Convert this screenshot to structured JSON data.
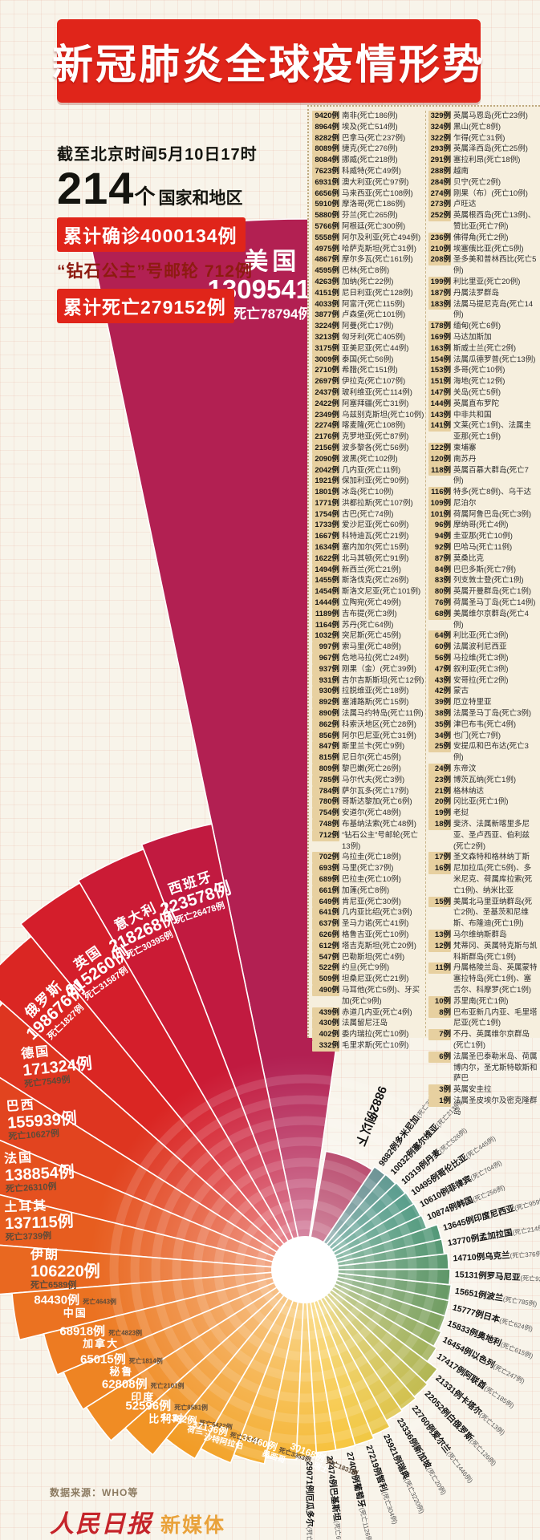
{
  "header": {
    "title": "新冠肺炎全球疫情形势",
    "asof": "截至北京时间5月10日17时",
    "countries_count": "214",
    "countries_unit": "个",
    "countries_suffix": "国家和地区",
    "confirmed_total": "累计确诊4000134例",
    "ship_line": "“钻石公主”号邮轮 712例",
    "deaths_total": "累计死亡279152例"
  },
  "footer": {
    "source": "数据来源：WHO等",
    "brand_main": "人民日报",
    "brand_sub": "新媒体"
  },
  "colors": {
    "banner_red": "#e0251a",
    "badge_tan": "#e7d0a0",
    "panel_cream": "#f6efde",
    "us_wedge": "#b22052"
  },
  "chart_data": {
    "type": "pie",
    "subtype": "rose-spiral",
    "unit": "例",
    "title": "新冠肺炎全球疫情形势",
    "threshold_label": "9882例以下",
    "series_format": [
      "name",
      "cases",
      "deaths"
    ],
    "series": [
      [
        "美国",
        1309541,
        78794
      ],
      [
        "西班牙",
        223578,
        26478
      ],
      [
        "意大利",
        218268,
        30395
      ],
      [
        "英国",
        215260,
        31587
      ],
      [
        "俄罗斯",
        198676,
        1827
      ],
      [
        "德国",
        171324,
        7549
      ],
      [
        "巴西",
        155939,
        10627
      ],
      [
        "法国",
        138854,
        26310
      ],
      [
        "土耳其",
        137115,
        3739
      ],
      [
        "伊朗",
        106220,
        6589
      ],
      [
        "中国",
        84430,
        4643
      ],
      [
        "加拿大",
        68918,
        4823
      ],
      [
        "秘鲁",
        65015,
        1814
      ],
      [
        "印度",
        62808,
        2101
      ],
      [
        "比利时",
        52596,
        8581
      ],
      [
        "荷兰",
        42382,
        5422
      ],
      [
        "沙特阿拉伯",
        37136,
        239
      ],
      [
        "墨西哥",
        33460,
        3353
      ],
      [
        "瑞士",
        30168,
        1831
      ],
      [
        "厄瓜多尔",
        29071,
        1717
      ],
      [
        "巴基斯坦",
        27474,
        618
      ],
      [
        "葡萄牙",
        27406,
        1126
      ],
      [
        "智利",
        27219,
        304
      ],
      [
        "瑞典",
        25921,
        3220
      ],
      [
        "新加坡",
        23336,
        20
      ],
      [
        "爱尔兰",
        22760,
        1446
      ],
      [
        "白俄罗斯",
        22052,
        126
      ],
      [
        "卡塔尔",
        21331,
        13
      ],
      [
        "阿联酋",
        17417,
        185
      ],
      [
        "以色列",
        16454,
        247
      ],
      [
        "奥地利",
        15833,
        615
      ],
      [
        "日本",
        15777,
        624
      ],
      [
        "波兰",
        15651,
        785
      ],
      [
        "罗马尼亚",
        15131,
        926
      ],
      [
        "乌克兰",
        14710,
        376
      ],
      [
        "孟加拉国",
        13770,
        214
      ],
      [
        "印度尼西亚",
        13645,
        959
      ],
      [
        "韩国",
        10874,
        256
      ],
      [
        "菲律宾",
        10610,
        704
      ],
      [
        "哥伦比亚",
        10495,
        445
      ],
      [
        "丹麦",
        10319,
        526
      ],
      [
        "塞尔维亚",
        10032,
        213
      ],
      [
        "多米尼加",
        9882,
        385
      ]
    ],
    "wedge_colors": [
      "#b22052",
      "#c11a40",
      "#cb1b35",
      "#d41e2b",
      "#da2623",
      "#de3520",
      "#e2441f",
      "#e5511f",
      "#e75d1f",
      "#e96820",
      "#eb7221",
      "#ed7b22",
      "#ee8423",
      "#f08c24",
      "#f19425",
      "#f29c26",
      "#f3a328",
      "#f4aa2a",
      "#f5b12c",
      "#f5b72e",
      "#f6bd30",
      "#f6c232",
      "#f0c334",
      "#e8c136",
      "#dcbe38",
      "#cdba3a",
      "#bcb43c",
      "#a8ad3e",
      "#93a540",
      "#7e9c42",
      "#6a9344",
      "#578b46",
      "#4a8648",
      "#40834c",
      "#398251",
      "#348256",
      "#30835c",
      "#2e8462",
      "#2d8568",
      "#2e856d",
      "#318472",
      "#398076",
      "#48787a"
    ],
    "threshold_wedge_color": "#a81f4a",
    "legend_position": "none",
    "grid": true
  },
  "country_list": {
    "column1": [
      [
        "9420例",
        "南非(死亡186例)"
      ],
      [
        "8964例",
        "埃及(死亡514例)"
      ],
      [
        "8282例",
        "巴拿马(死亡237例)"
      ],
      [
        "8089例",
        "捷克(死亡276例)"
      ],
      [
        "8084例",
        "挪威(死亡218例)"
      ],
      [
        "7623例",
        "科威特(死亡49例)"
      ],
      [
        "6931例",
        "澳大利亚(死亡97例)"
      ],
      [
        "6656例",
        "马来西亚(死亡108例)"
      ],
      [
        "5910例",
        "摩洛哥(死亡186例)"
      ],
      [
        "5880例",
        "芬兰(死亡265例)"
      ],
      [
        "5766例",
        "阿根廷(死亡300例)"
      ],
      [
        "5558例",
        "阿尔及利亚(死亡494例)"
      ],
      [
        "4975例",
        "哈萨克斯坦(死亡31例)"
      ],
      [
        "4867例",
        "摩尔多瓦(死亡161例)"
      ],
      [
        "4595例",
        "巴林(死亡8例)"
      ],
      [
        "4263例",
        "加纳(死亡22例)"
      ],
      [
        "4151例",
        "尼日利亚(死亡128例)"
      ],
      [
        "4033例",
        "阿富汗(死亡115例)"
      ],
      [
        "3877例",
        "卢森堡(死亡101例)"
      ],
      [
        "3224例",
        "阿曼(死亡17例)"
      ],
      [
        "3213例",
        "匈牙利(死亡405例)"
      ],
      [
        "3175例",
        "亚美尼亚(死亡44例)"
      ],
      [
        "3009例",
        "泰国(死亡56例)"
      ],
      [
        "2710例",
        "希腊(死亡151例)"
      ],
      [
        "2697例",
        "伊拉克(死亡107例)"
      ],
      [
        "2437例",
        "玻利维亚(死亡114例)"
      ],
      [
        "2422例",
        "阿塞拜疆(死亡31例)"
      ],
      [
        "2349例",
        "乌兹别克斯坦(死亡10例)"
      ],
      [
        "2274例",
        "喀麦隆(死亡108例)"
      ],
      [
        "2176例",
        "克罗地亚(死亡87例)"
      ],
      [
        "2156例",
        "波多黎各(死亡56例)"
      ],
      [
        "2090例",
        "波黑(死亡102例)"
      ],
      [
        "2042例",
        "几内亚(死亡11例)"
      ],
      [
        "1921例",
        "保加利亚(死亡90例)"
      ],
      [
        "1801例",
        "冰岛(死亡10例)"
      ],
      [
        "1771例",
        "洪都拉斯(死亡107例)"
      ],
      [
        "1754例",
        "古巴(死亡74例)"
      ],
      [
        "1733例",
        "爱沙尼亚(死亡60例)"
      ],
      [
        "1667例",
        "科特迪瓦(死亡21例)"
      ],
      [
        "1634例",
        "塞内加尔(死亡15例)"
      ],
      [
        "1622例",
        "北马其顿(死亡91例)"
      ],
      [
        "1494例",
        "新西兰(死亡21例)"
      ],
      [
        "1455例",
        "斯洛伐克(死亡26例)"
      ],
      [
        "1454例",
        "斯洛文尼亚(死亡101例)"
      ],
      [
        "1444例",
        "立陶宛(死亡49例)"
      ],
      [
        "1189例",
        "吉布提(死亡3例)"
      ],
      [
        "1164例",
        "苏丹(死亡64例)"
      ],
      [
        "1032例",
        "突尼斯(死亡45例)"
      ],
      [
        "997例",
        "索马里(死亡48例)"
      ],
      [
        "967例",
        "危地马拉(死亡24例)"
      ],
      [
        "937例",
        "刚果（金）(死亡39例)"
      ],
      [
        "931例",
        "吉尔吉斯斯坦(死亡12例)"
      ],
      [
        "930例",
        "拉脱维亚(死亡18例)"
      ],
      [
        "892例",
        "塞浦路斯(死亡15例)"
      ],
      [
        "890例",
        "法属马约特岛(死亡11例)"
      ],
      [
        "862例",
        "科索沃地区(死亡28例)"
      ],
      [
        "856例",
        "阿尔巴尼亚(死亡31例)"
      ],
      [
        "847例",
        "斯里兰卡(死亡9例)"
      ],
      [
        "815例",
        "尼日尔(死亡45例)"
      ],
      [
        "809例",
        "黎巴嫩(死亡26例)"
      ],
      [
        "785例",
        "马尔代夫(死亡3例)"
      ],
      [
        "784例",
        "萨尔瓦多(死亡17例)"
      ],
      [
        "780例",
        "哥斯达黎加(死亡6例)"
      ],
      [
        "754例",
        "安道尔(死亡48例)"
      ],
      [
        "748例",
        "布基纳法索(死亡48例)"
      ],
      [
        "712例",
        "“钻石公主”号邮轮(死亡13例)"
      ],
      [
        "702例",
        "乌拉圭(死亡18例)"
      ],
      [
        "693例",
        "马里(死亡37例)"
      ],
      [
        "689例",
        "巴拉圭(死亡10例)"
      ],
      [
        "661例",
        "加蓬(死亡8例)"
      ],
      [
        "649例",
        "肯尼亚(死亡30例)"
      ],
      [
        "641例",
        "几内亚比绍(死亡3例)"
      ],
      [
        "637例",
        "圣马力诺(死亡41例)"
      ],
      [
        "626例",
        "格鲁吉亚(死亡10例)"
      ],
      [
        "612例",
        "塔吉克斯坦(死亡20例)"
      ],
      [
        "547例",
        "巴勒斯坦(死亡4例)"
      ],
      [
        "522例",
        "约旦(死亡9例)"
      ],
      [
        "509例",
        "坦桑尼亚(死亡21例)"
      ],
      [
        "490例",
        "马耳他(死亡5例)、牙买加(死亡9例)"
      ],
      [
        "439例",
        "赤道几内亚(死亡4例)"
      ],
      [
        "430例",
        "法属留尼汪岛"
      ],
      [
        "402例",
        "委内瑞拉(死亡10例)"
      ],
      [
        "332例",
        "毛里求斯(死亡10例)"
      ]
    ],
    "column2": [
      [
        "329例",
        "英属马恩岛(死亡23例)"
      ],
      [
        "324例",
        "黑山(死亡8例)"
      ],
      [
        "322例",
        "乍得(死亡31例)"
      ],
      [
        "293例",
        "英属泽西岛(死亡25例)"
      ],
      [
        "291例",
        "塞拉利昂(死亡18例)"
      ],
      [
        "288例",
        "越南"
      ],
      [
        "284例",
        "贝宁(死亡2例)"
      ],
      [
        "274例",
        "刚果（布）(死亡10例)"
      ],
      [
        "273例",
        "卢旺达"
      ],
      [
        "252例",
        "英属根西岛(死亡13例)、赞比亚(死亡7例)"
      ],
      [
        "236例",
        "佛得角(死亡2例)"
      ],
      [
        "210例",
        "埃塞俄比亚(死亡5例)"
      ],
      [
        "208例",
        "圣多美和普林西比(死亡5例)"
      ],
      [
        "199例",
        "利比里亚(死亡20例)"
      ],
      [
        "187例",
        "丹属法罗群岛"
      ],
      [
        "183例",
        "法属马提尼克岛(死亡14例)"
      ],
      [
        "178例",
        "缅甸(死亡6例)"
      ],
      [
        "169例",
        "马达加斯加"
      ],
      [
        "163例",
        "斯威士兰(死亡2例)"
      ],
      [
        "154例",
        "法属瓜德罗普(死亡13例)"
      ],
      [
        "153例",
        "多哥(死亡10例)"
      ],
      [
        "151例",
        "海地(死亡12例)"
      ],
      [
        "147例",
        "关岛(死亡5例)"
      ],
      [
        "144例",
        "英属直布罗陀"
      ],
      [
        "143例",
        "中非共和国"
      ],
      [
        "141例",
        "文莱(死亡1例)、法属圭亚那(死亡1例)"
      ],
      [
        "122例",
        "柬埔寨"
      ],
      [
        "120例",
        "南苏丹"
      ],
      [
        "118例",
        "英属百慕大群岛(死亡7例)"
      ],
      [
        "116例",
        "特多(死亡8例)、乌干达"
      ],
      [
        "109例",
        "尼泊尔"
      ],
      [
        "101例",
        "荷属阿鲁巴岛(死亡3例)"
      ],
      [
        "96例",
        "摩纳哥(死亡4例)"
      ],
      [
        "94例",
        "圭亚那(死亡10例)"
      ],
      [
        "92例",
        "巴哈马(死亡11例)"
      ],
      [
        "87例",
        "莫桑比克"
      ],
      [
        "84例",
        "巴巴多斯(死亡7例)"
      ],
      [
        "83例",
        "列支敦士登(死亡1例)"
      ],
      [
        "80例",
        "英属开曼群岛(死亡1例)"
      ],
      [
        "76例",
        "荷属圣马丁岛(死亡14例)"
      ],
      [
        "68例",
        "美属维尔京群岛(死亡4例)"
      ],
      [
        "64例",
        "利比亚(死亡3例)"
      ],
      [
        "60例",
        "法属波利尼西亚"
      ],
      [
        "56例",
        "马拉维(死亡3例)"
      ],
      [
        "47例",
        "叙利亚(死亡3例)"
      ],
      [
        "43例",
        "安哥拉(死亡2例)"
      ],
      [
        "42例",
        "蒙古"
      ],
      [
        "39例",
        "厄立特里亚"
      ],
      [
        "38例",
        "法属圣马丁岛(死亡3例)"
      ],
      [
        "35例",
        "津巴布韦(死亡4例)"
      ],
      [
        "34例",
        "也门(死亡7例)"
      ],
      [
        "25例",
        "安提瓜和巴布达(死亡3例)"
      ],
      [
        "24例",
        "东帝汶"
      ],
      [
        "23例",
        "博茨瓦纳(死亡1例)"
      ],
      [
        "21例",
        "格林纳达"
      ],
      [
        "20例",
        "冈比亚(死亡1例)"
      ],
      [
        "19例",
        "老挝"
      ],
      [
        "18例",
        "斐济、法属新喀里多尼亚、圣卢西亚、伯利兹(死亡2例)"
      ],
      [
        "17例",
        "圣文森特和格林纳丁斯"
      ],
      [
        "16例",
        "尼加拉瓜(死亡5例)、多米尼克、荷属库拉索(死亡1例)、纳米比亚"
      ],
      [
        "15例",
        "美属北马里亚纳群岛(死亡2例)、圣基茨和尼维斯、布隆迪(死亡1例)"
      ],
      [
        "13例",
        "马尔维纳斯群岛"
      ],
      [
        "12例",
        "梵蒂冈、英属特克斯与凯科斯群岛(死亡1例)"
      ],
      [
        "11例",
        "丹属格陵兰岛、英属蒙特塞拉特岛(死亡1例)、塞舌尔、科摩罗(死亡1例)"
      ],
      [
        "10例",
        "苏里南(死亡1例)"
      ],
      [
        "8例",
        "巴布亚新几内亚、毛里塔尼亚(死亡1例)"
      ],
      [
        "7例",
        "不丹、英属维尔京群岛(死亡1例)"
      ],
      [
        "6例",
        "法属圣巴泰勒米岛、荷属博内尔，圣尤斯特歇斯和萨巴"
      ],
      [
        "3例",
        "英属安圭拉"
      ],
      [
        "1例",
        "法属圣皮埃尔及密克隆群岛"
      ]
    ]
  }
}
